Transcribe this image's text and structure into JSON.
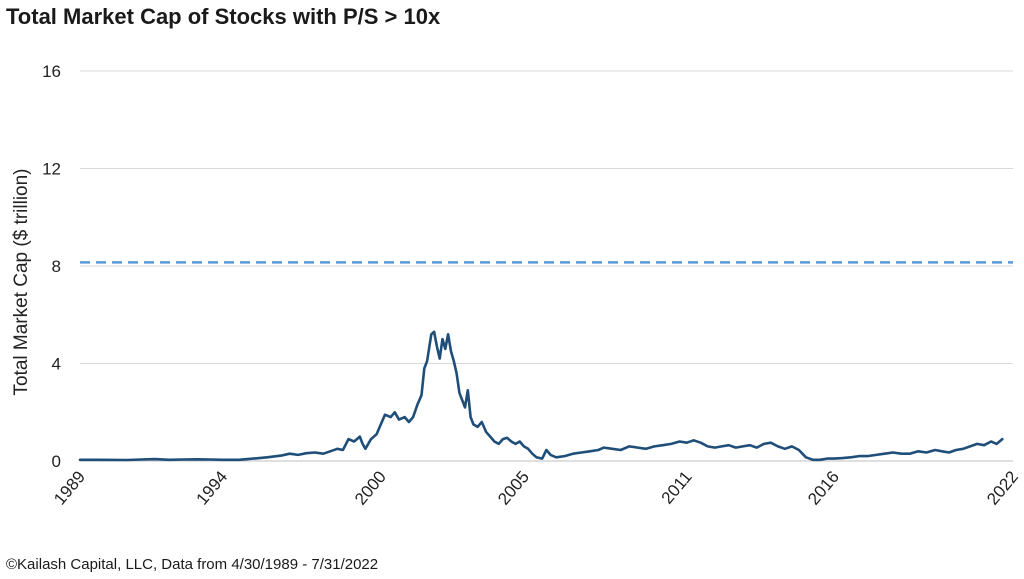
{
  "title": "Total Market Cap of Stocks with P/S > 10x",
  "footer": "©Kailash Capital, LLC, Data from 4/30/1989 - 7/31/2022",
  "chart_data": {
    "type": "line",
    "title": "Total Market Cap of Stocks with P/S > 10x",
    "ylabel": "Total Market Cap ($ trillion)",
    "xlabel": "",
    "ylim": [
      0,
      16
    ],
    "xlim": [
      1989.33,
      2022.58
    ],
    "y_ticks": [
      0,
      4,
      8,
      12,
      16
    ],
    "x_tick_labels": [
      "1989",
      "1994",
      "2000",
      "2005",
      "2011",
      "2016",
      "2022"
    ],
    "x_tick_values": [
      1989.33,
      1994.4,
      2000.05,
      2005.15,
      2010.95,
      2016.2,
      2022.58
    ],
    "grid": "horizontal",
    "line_color": "#1f4e79",
    "reference_line": {
      "value": 8.15,
      "style": "dashed",
      "color": "#5b9bd5"
    },
    "series": [
      {
        "points": [
          [
            1989.33,
            0.05
          ],
          [
            1990.0,
            0.05
          ],
          [
            1991.0,
            0.04
          ],
          [
            1991.5,
            0.06
          ],
          [
            1992.0,
            0.08
          ],
          [
            1992.5,
            0.05
          ],
          [
            1993.0,
            0.06
          ],
          [
            1993.5,
            0.07
          ],
          [
            1994.0,
            0.06
          ],
          [
            1994.4,
            0.05
          ],
          [
            1995.0,
            0.05
          ],
          [
            1995.5,
            0.1
          ],
          [
            1996.0,
            0.15
          ],
          [
            1996.5,
            0.22
          ],
          [
            1996.8,
            0.3
          ],
          [
            1997.1,
            0.25
          ],
          [
            1997.4,
            0.32
          ],
          [
            1997.7,
            0.35
          ],
          [
            1998.0,
            0.3
          ],
          [
            1998.3,
            0.42
          ],
          [
            1998.5,
            0.5
          ],
          [
            1998.7,
            0.45
          ],
          [
            1998.9,
            0.9
          ],
          [
            1999.1,
            0.8
          ],
          [
            1999.3,
            1.0
          ],
          [
            1999.4,
            0.7
          ],
          [
            1999.5,
            0.5
          ],
          [
            1999.7,
            0.9
          ],
          [
            1999.9,
            1.1
          ],
          [
            2000.05,
            1.5
          ],
          [
            2000.2,
            1.9
          ],
          [
            2000.4,
            1.8
          ],
          [
            2000.55,
            2.0
          ],
          [
            2000.7,
            1.7
          ],
          [
            2000.9,
            1.8
          ],
          [
            2001.05,
            1.6
          ],
          [
            2001.2,
            1.8
          ],
          [
            2001.35,
            2.3
          ],
          [
            2001.5,
            2.7
          ],
          [
            2001.6,
            3.8
          ],
          [
            2001.7,
            4.1
          ],
          [
            2001.85,
            5.2
          ],
          [
            2001.95,
            5.3
          ],
          [
            2002.05,
            4.7
          ],
          [
            2002.15,
            4.2
          ],
          [
            2002.25,
            5.0
          ],
          [
            2002.35,
            4.6
          ],
          [
            2002.45,
            5.2
          ],
          [
            2002.55,
            4.5
          ],
          [
            2002.65,
            4.1
          ],
          [
            2002.75,
            3.6
          ],
          [
            2002.85,
            2.8
          ],
          [
            2002.95,
            2.5
          ],
          [
            2003.05,
            2.2
          ],
          [
            2003.15,
            2.9
          ],
          [
            2003.25,
            1.8
          ],
          [
            2003.35,
            1.5
          ],
          [
            2003.5,
            1.4
          ],
          [
            2003.65,
            1.6
          ],
          [
            2003.8,
            1.2
          ],
          [
            2003.95,
            1.0
          ],
          [
            2004.1,
            0.8
          ],
          [
            2004.25,
            0.7
          ],
          [
            2004.4,
            0.9
          ],
          [
            2004.55,
            0.95
          ],
          [
            2004.7,
            0.8
          ],
          [
            2004.85,
            0.7
          ],
          [
            2005.0,
            0.8
          ],
          [
            2005.15,
            0.6
          ],
          [
            2005.3,
            0.5
          ],
          [
            2005.45,
            0.3
          ],
          [
            2005.6,
            0.15
          ],
          [
            2005.8,
            0.1
          ],
          [
            2005.95,
            0.45
          ],
          [
            2006.1,
            0.25
          ],
          [
            2006.3,
            0.15
          ],
          [
            2006.6,
            0.2
          ],
          [
            2006.9,
            0.3
          ],
          [
            2007.2,
            0.35
          ],
          [
            2007.5,
            0.4
          ],
          [
            2007.8,
            0.45
          ],
          [
            2008.0,
            0.55
          ],
          [
            2008.3,
            0.5
          ],
          [
            2008.6,
            0.45
          ],
          [
            2008.9,
            0.6
          ],
          [
            2009.2,
            0.55
          ],
          [
            2009.5,
            0.5
          ],
          [
            2009.8,
            0.6
          ],
          [
            2010.1,
            0.65
          ],
          [
            2010.4,
            0.7
          ],
          [
            2010.7,
            0.8
          ],
          [
            2010.95,
            0.75
          ],
          [
            2011.2,
            0.85
          ],
          [
            2011.45,
            0.75
          ],
          [
            2011.7,
            0.6
          ],
          [
            2011.95,
            0.55
          ],
          [
            2012.2,
            0.6
          ],
          [
            2012.45,
            0.65
          ],
          [
            2012.7,
            0.55
          ],
          [
            2012.95,
            0.6
          ],
          [
            2013.2,
            0.65
          ],
          [
            2013.45,
            0.55
          ],
          [
            2013.7,
            0.7
          ],
          [
            2013.95,
            0.75
          ],
          [
            2014.2,
            0.6
          ],
          [
            2014.45,
            0.5
          ],
          [
            2014.7,
            0.6
          ],
          [
            2014.95,
            0.45
          ],
          [
            2015.2,
            0.15
          ],
          [
            2015.45,
            0.05
          ],
          [
            2015.7,
            0.05
          ],
          [
            2015.95,
            0.1
          ],
          [
            2016.2,
            0.1
          ],
          [
            2016.5,
            0.12
          ],
          [
            2016.8,
            0.15
          ],
          [
            2017.1,
            0.2
          ],
          [
            2017.4,
            0.2
          ],
          [
            2017.7,
            0.25
          ],
          [
            2018.0,
            0.3
          ],
          [
            2018.3,
            0.35
          ],
          [
            2018.6,
            0.3
          ],
          [
            2018.9,
            0.3
          ],
          [
            2019.2,
            0.4
          ],
          [
            2019.5,
            0.35
          ],
          [
            2019.8,
            0.45
          ],
          [
            2020.05,
            0.4
          ],
          [
            2020.3,
            0.35
          ],
          [
            2020.55,
            0.45
          ],
          [
            2020.8,
            0.5
          ],
          [
            2021.05,
            0.6
          ],
          [
            2021.3,
            0.7
          ],
          [
            2021.55,
            0.65
          ],
          [
            2021.8,
            0.8
          ],
          [
            2022.0,
            0.7
          ],
          [
            2022.2,
            0.9
          ]
        ]
      }
    ]
  }
}
